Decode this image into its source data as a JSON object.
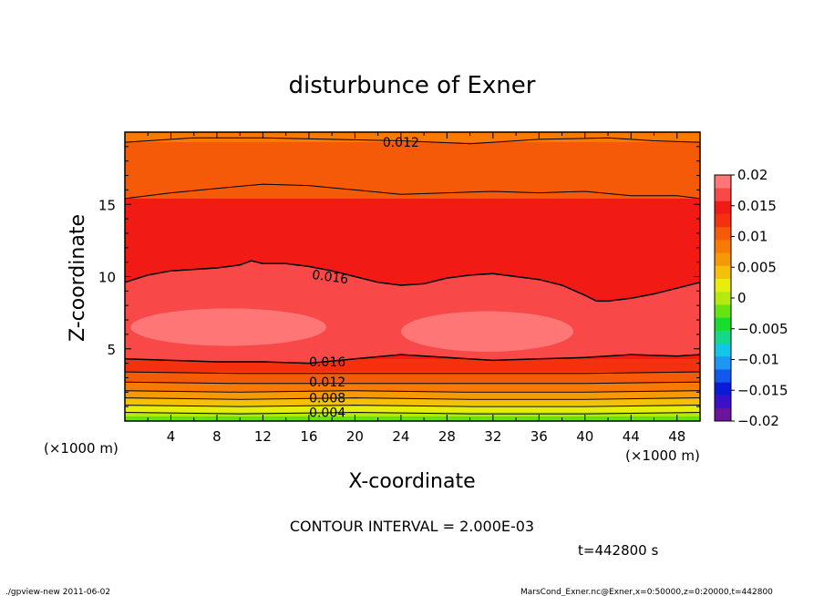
{
  "chart_data": {
    "type": "contour",
    "title": "disturbunce of Exner",
    "xlabel": "X-coordinate",
    "ylabel": "Z-coordinate",
    "x_unit_left": "(×1000 m)",
    "x_unit_right": "(×1000 m)",
    "xlim": [
      0,
      50
    ],
    "ylim": [
      0,
      20
    ],
    "x_ticks": [
      4,
      8,
      12,
      16,
      20,
      24,
      28,
      32,
      36,
      40,
      44,
      48
    ],
    "y_ticks": [
      5,
      10,
      15
    ],
    "contour_interval_text": "CONTOUR INTERVAL = 2.000E-03",
    "time_text": "t=442800 s",
    "colorbar": {
      "min": -0.02,
      "max": 0.02,
      "tick_labels": [
        "0.02",
        "0.015",
        "0.01",
        "0.005",
        "0",
        "−0.005",
        "−0.01",
        "−0.015",
        "−0.02"
      ],
      "colors": [
        "#6a14a0",
        "#3a10c8",
        "#0b1ad6",
        "#1258ec",
        "#1e96f4",
        "#10c8e6",
        "#16d88c",
        "#18dc2e",
        "#66e412",
        "#b6ea0c",
        "#e6ee0a",
        "#f6c008",
        "#f59a06",
        "#f77a04",
        "#f55a08",
        "#f4300e",
        "#f21a14",
        "#f84848",
        "#ff7676"
      ]
    },
    "contour_labels": [
      {
        "text": "0.012",
        "x": 24.0,
        "z": 19.3
      },
      {
        "text": "0.016",
        "x": 17.8,
        "z": 10.0
      },
      {
        "text": "0.016",
        "x": 17.6,
        "z": 4.1
      },
      {
        "text": "0.012",
        "x": 17.6,
        "z": 2.7
      },
      {
        "text": "0.008",
        "x": 17.6,
        "z": 1.6
      },
      {
        "text": "0.004",
        "x": 17.6,
        "z": 0.6
      }
    ],
    "contour_lines": [
      {
        "level": 0.012,
        "x": [
          0,
          6,
          12,
          18,
          24,
          30,
          36,
          42,
          46,
          50
        ],
        "z": [
          19.3,
          19.6,
          19.6,
          19.5,
          19.4,
          19.2,
          19.5,
          19.6,
          19.4,
          19.3
        ]
      },
      {
        "level": 0.014,
        "x": [
          0,
          4,
          8,
          12,
          16,
          20,
          24,
          28,
          32,
          36,
          40,
          44,
          48,
          50
        ],
        "z": [
          15.4,
          15.8,
          16.1,
          16.4,
          16.3,
          16.0,
          15.7,
          15.8,
          15.9,
          15.8,
          15.9,
          15.6,
          15.6,
          15.4
        ]
      },
      {
        "level": 0.016,
        "x": [
          0,
          2,
          4,
          6,
          8,
          10,
          11,
          12,
          14,
          16,
          18,
          20,
          22,
          24,
          26,
          28,
          30,
          32,
          34,
          36,
          38,
          40,
          41,
          42,
          44,
          46,
          48,
          50
        ],
        "z": [
          9.6,
          10.1,
          10.4,
          10.5,
          10.6,
          10.8,
          11.1,
          10.9,
          10.9,
          10.7,
          10.4,
          10.0,
          9.6,
          9.4,
          9.5,
          9.9,
          10.1,
          10.2,
          10.0,
          9.8,
          9.4,
          8.7,
          8.3,
          8.3,
          8.5,
          8.8,
          9.2,
          9.6
        ]
      },
      {
        "level": 0.016,
        "x": [
          0,
          4,
          8,
          12,
          16,
          20,
          24,
          28,
          32,
          36,
          40,
          44,
          48,
          50
        ],
        "z": [
          4.3,
          4.2,
          4.1,
          4.1,
          4.0,
          4.3,
          4.6,
          4.4,
          4.2,
          4.3,
          4.4,
          4.6,
          4.5,
          4.6
        ]
      },
      {
        "level": 0.014,
        "x": [
          0,
          10,
          20,
          30,
          40,
          50
        ],
        "z": [
          3.4,
          3.3,
          3.3,
          3.3,
          3.3,
          3.4
        ]
      },
      {
        "level": 0.012,
        "x": [
          0,
          10,
          20,
          30,
          40,
          50
        ],
        "z": [
          2.7,
          2.6,
          2.6,
          2.6,
          2.6,
          2.7
        ]
      },
      {
        "level": 0.01,
        "x": [
          0,
          10,
          20,
          30,
          40,
          50
        ],
        "z": [
          2.1,
          2.0,
          2.1,
          2.0,
          2.0,
          2.1
        ]
      },
      {
        "level": 0.008,
        "x": [
          0,
          10,
          20,
          30,
          40,
          50
        ],
        "z": [
          1.6,
          1.5,
          1.6,
          1.5,
          1.5,
          1.6
        ]
      },
      {
        "level": 0.006,
        "x": [
          0,
          10,
          20,
          30,
          40,
          50
        ],
        "z": [
          1.1,
          1.0,
          1.1,
          1.0,
          1.0,
          1.1
        ]
      },
      {
        "level": 0.004,
        "x": [
          0,
          10,
          20,
          30,
          40,
          50
        ],
        "z": [
          0.6,
          0.5,
          0.6,
          0.5,
          0.5,
          0.6
        ]
      }
    ],
    "filled_bands": [
      {
        "z_bottom": 0.0,
        "z_top": 0.3,
        "color": "#66e412"
      },
      {
        "z_bottom": 0.3,
        "z_top": 0.6,
        "color": "#b6ea0c"
      },
      {
        "z_bottom": 0.6,
        "z_top": 1.1,
        "color": "#e6ee0a"
      },
      {
        "z_bottom": 1.1,
        "z_top": 1.6,
        "color": "#f6c008"
      },
      {
        "z_bottom": 1.6,
        "z_top": 2.1,
        "color": "#f59a06"
      },
      {
        "z_bottom": 2.1,
        "z_top": 2.7,
        "color": "#f77a04"
      },
      {
        "z_bottom": 2.7,
        "z_top": 3.4,
        "color": "#f55a08"
      },
      {
        "z_bottom": 3.4,
        "z_top": 4.3,
        "color": "#f4300e"
      },
      {
        "z_bottom": 15.4,
        "z_top": 19.3,
        "color": "#f55a08"
      },
      {
        "z_bottom": 19.3,
        "z_top": 20.0,
        "color": "#f77a04"
      }
    ],
    "interior_fill_color": "#f21a14",
    "high_region_color": "#f84848",
    "peak_region_color": "#ff7676",
    "peak_regions": [
      {
        "x_center": 9.0,
        "z_center": 6.5,
        "x_half": 8.5,
        "z_half": 1.3
      },
      {
        "x_center": 31.5,
        "z_center": 6.2,
        "x_half": 7.5,
        "z_half": 1.4
      }
    ],
    "footer_left": "./gpview-new   2011-06-02",
    "footer_right": "MarsCond_Exner.nc@Exner,x=0:50000,z=0:20000,t=442800"
  }
}
